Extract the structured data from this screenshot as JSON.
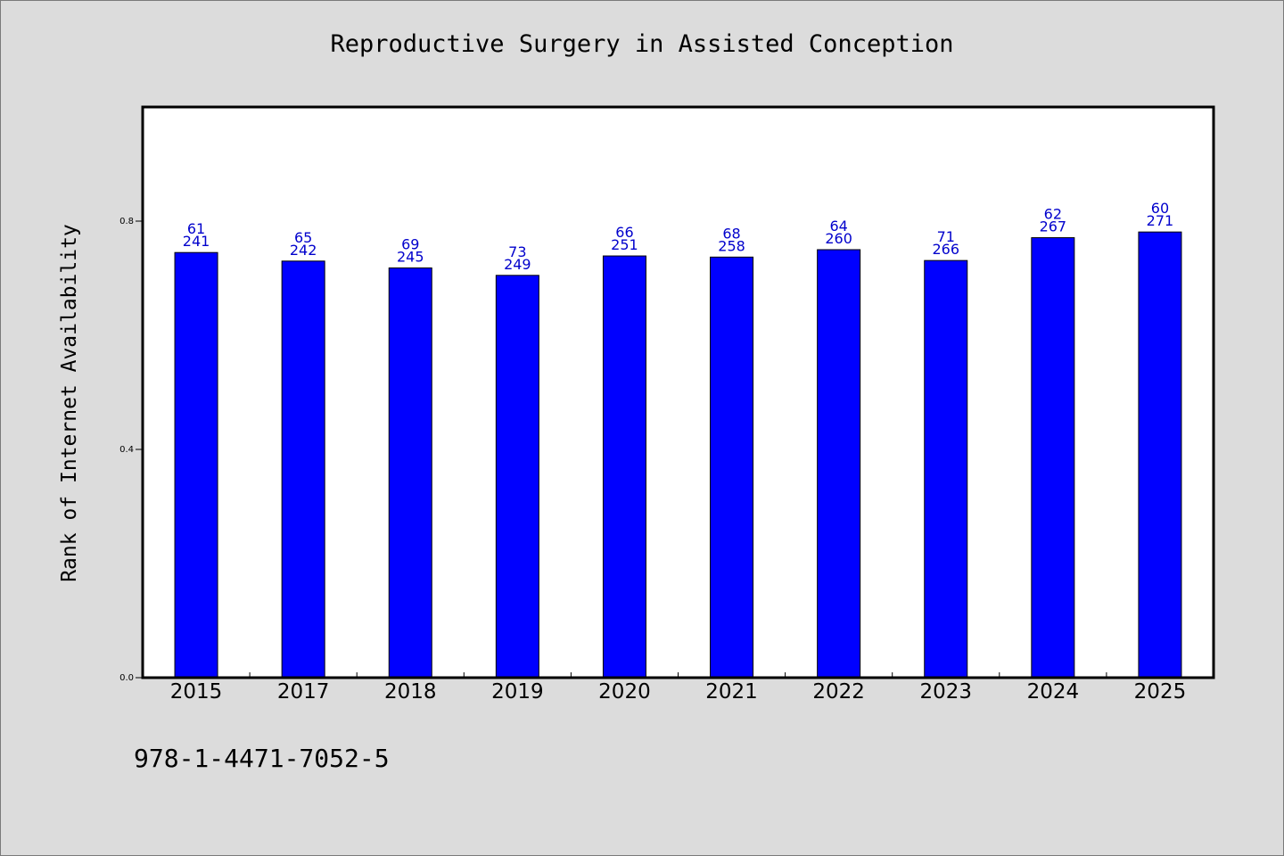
{
  "chart_data": {
    "type": "bar",
    "title": "Reproductive Surgery in Assisted Conception",
    "xlabel": "",
    "ylabel": "Rank of Internet Availability",
    "categories": [
      "2015",
      "2017",
      "2018",
      "2019",
      "2020",
      "2021",
      "2022",
      "2023",
      "2024",
      "2025"
    ],
    "values": [
      0.745,
      0.73,
      0.718,
      0.705,
      0.739,
      0.737,
      0.75,
      0.731,
      0.771,
      0.781
    ],
    "labels_top": [
      "61",
      "65",
      "69",
      "73",
      "66",
      "68",
      "64",
      "71",
      "62",
      "60"
    ],
    "labels_bottom": [
      "241",
      "242",
      "245",
      "249",
      "251",
      "258",
      "260",
      "266",
      "267",
      "271"
    ],
    "ylim": [
      0.0,
      1.0
    ],
    "yticks": [
      "0.0",
      "0.4",
      "0.8"
    ],
    "grid": false,
    "bar_color": "#0000ff",
    "label_color": "#0000cc",
    "background": "#dcdcdc"
  },
  "footer_text": "978-1-4471-7052-5"
}
